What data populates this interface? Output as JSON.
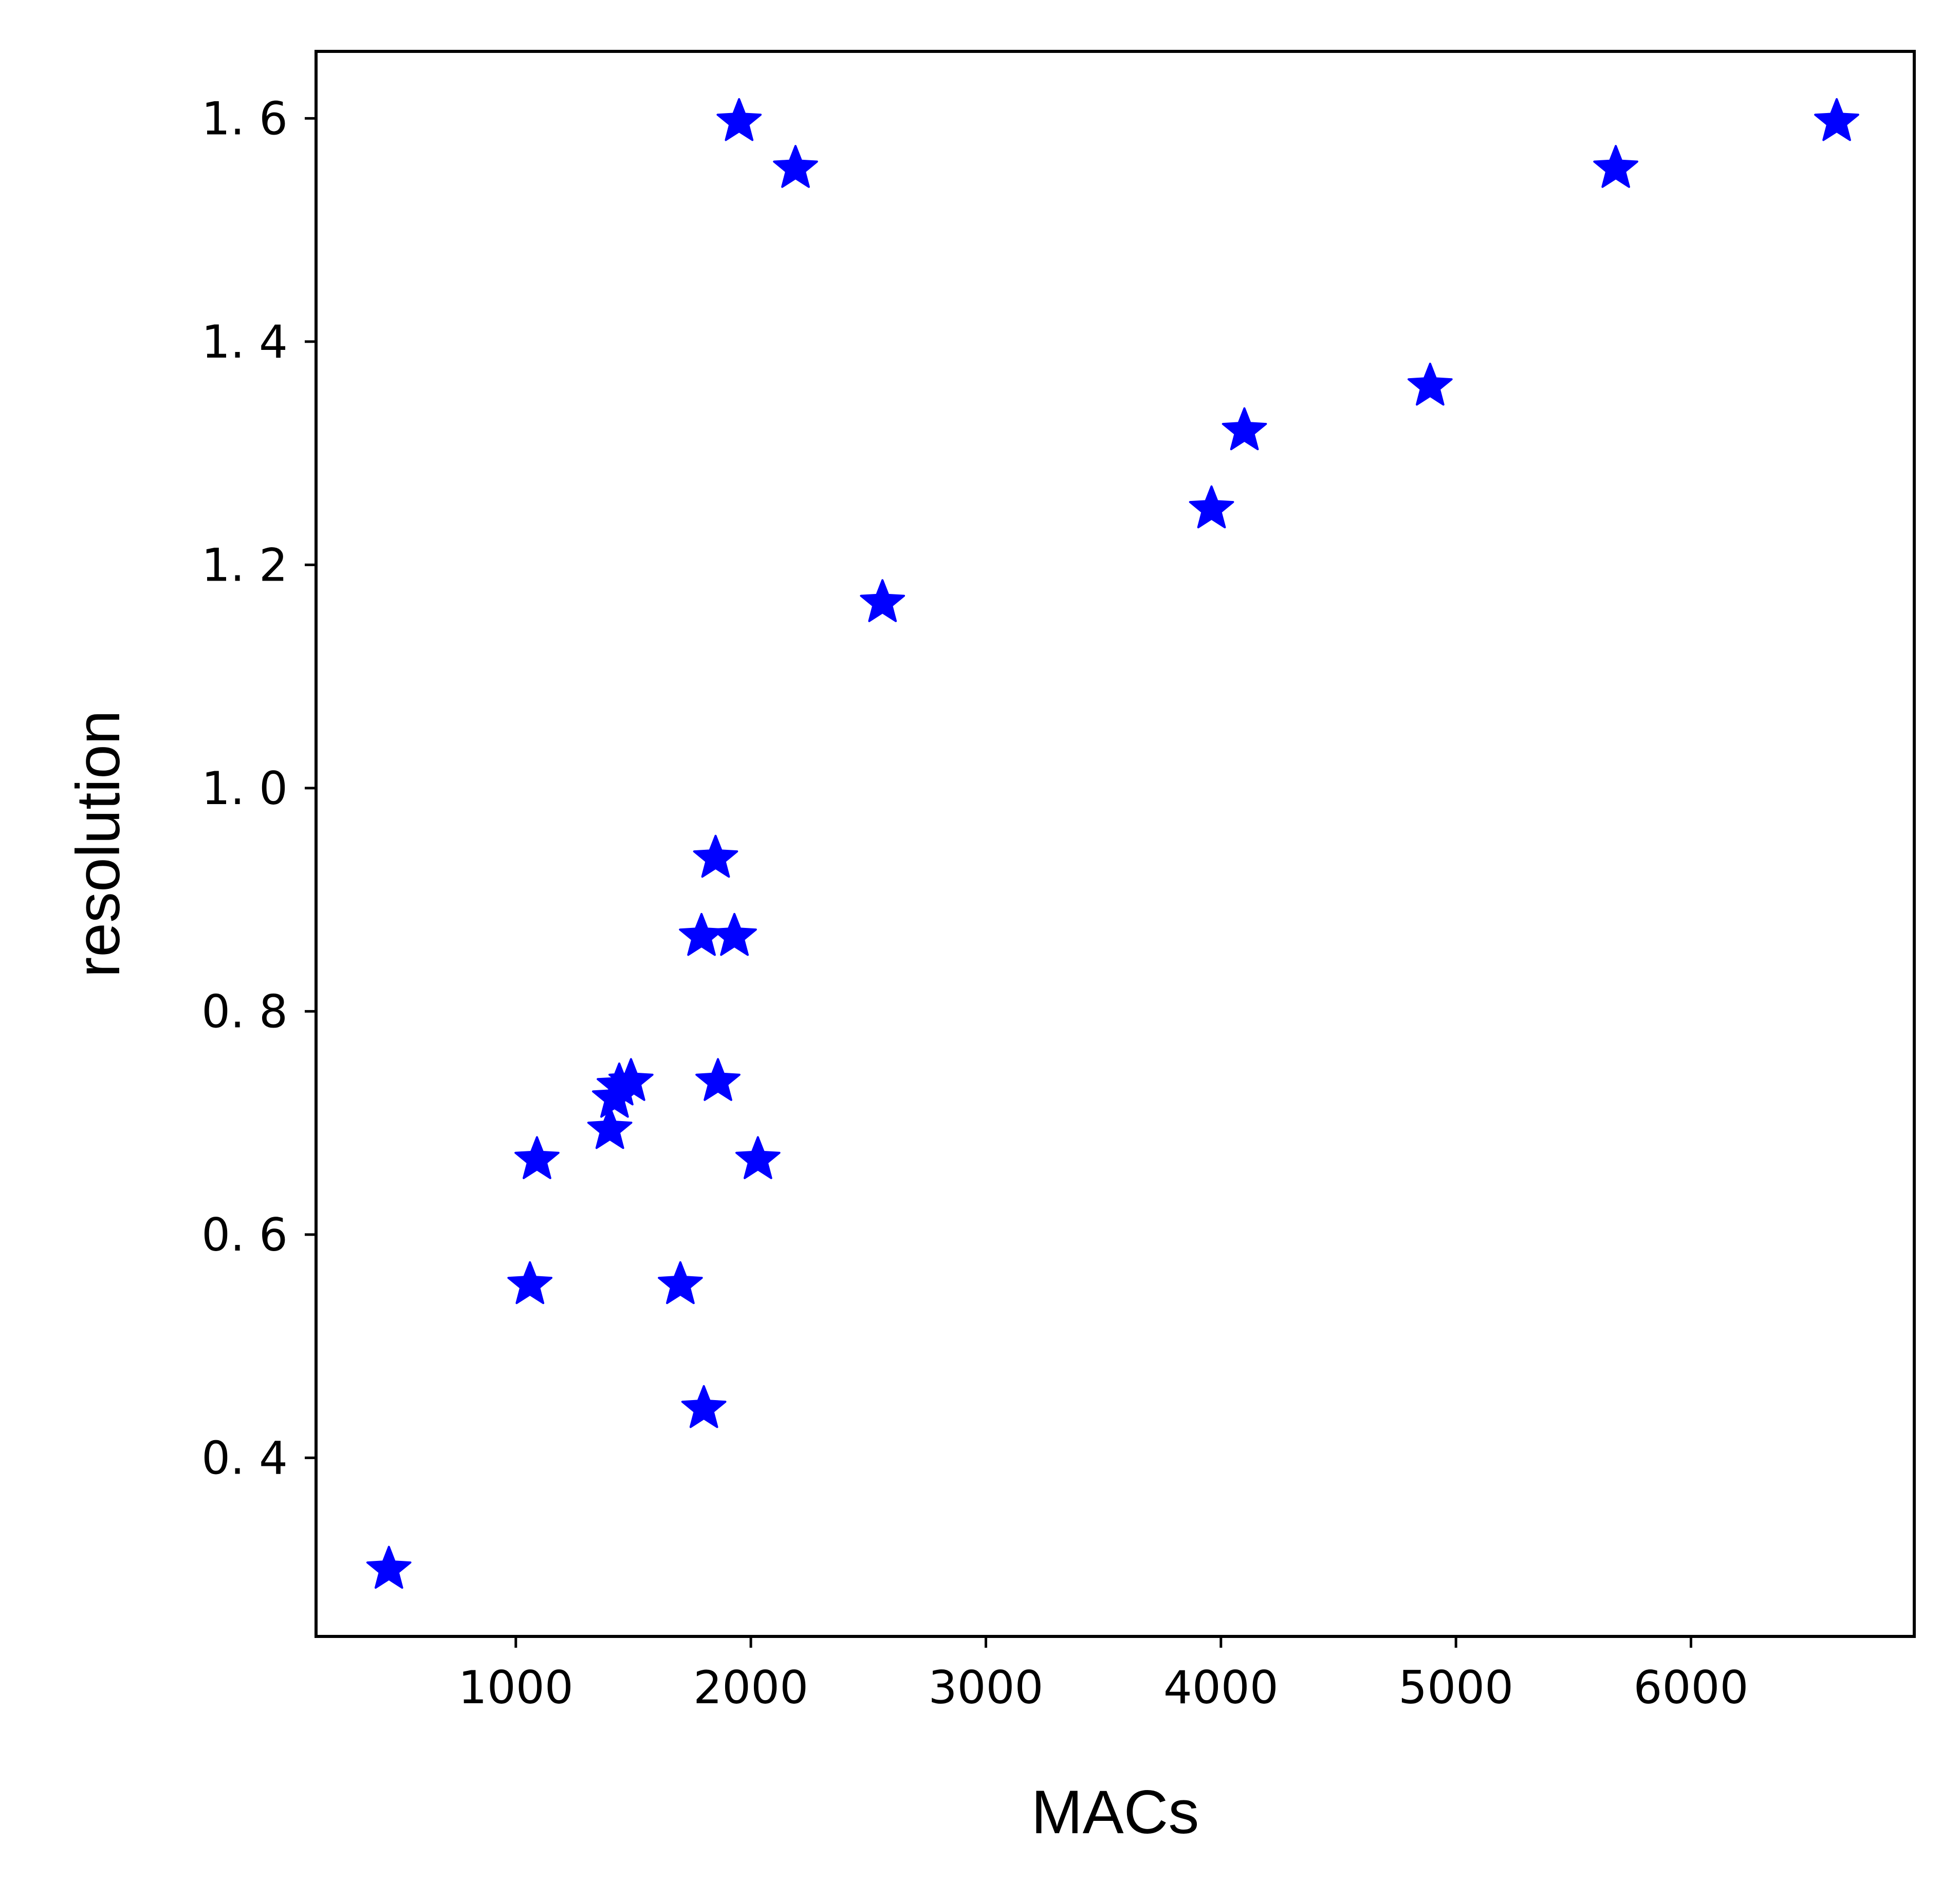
{
  "chart_data": {
    "type": "scatter",
    "title": "",
    "xlabel": "MACs",
    "ylabel": "resolution",
    "xlim": [
      150,
      6950
    ],
    "ylim": [
      0.24,
      1.66
    ],
    "xticks": [
      1000,
      2000,
      3000,
      4000,
      5000,
      6000
    ],
    "xtick_labels": [
      "1000",
      "2000",
      "3000",
      "4000",
      "5000",
      "6000"
    ],
    "yticks": [
      0.4,
      0.6,
      0.8,
      1.0,
      1.2,
      1.4,
      1.6
    ],
    "ytick_labels": [
      "0. 4",
      "0. 6",
      "0. 8",
      "1. 0",
      "1. 2",
      "1. 4",
      "1. 6"
    ],
    "grid": false,
    "marker": "star",
    "color": "#0000ff",
    "series": [
      {
        "points": [
          {
            "x": 460,
            "y": 0.3
          },
          {
            "x": 1060,
            "y": 0.555
          },
          {
            "x": 1090,
            "y": 0.667
          },
          {
            "x": 1400,
            "y": 0.694
          },
          {
            "x": 1420,
            "y": 0.722
          },
          {
            "x": 1440,
            "y": 0.733
          },
          {
            "x": 1490,
            "y": 0.737
          },
          {
            "x": 1700,
            "y": 0.555
          },
          {
            "x": 1800,
            "y": 0.444
          },
          {
            "x": 1790,
            "y": 0.867
          },
          {
            "x": 1930,
            "y": 0.867
          },
          {
            "x": 1850,
            "y": 0.937
          },
          {
            "x": 1860,
            "y": 0.737
          },
          {
            "x": 2030,
            "y": 0.667
          },
          {
            "x": 1950,
            "y": 1.597
          },
          {
            "x": 2190,
            "y": 1.555
          },
          {
            "x": 2560,
            "y": 1.166
          },
          {
            "x": 3960,
            "y": 1.25
          },
          {
            "x": 4100,
            "y": 1.32
          },
          {
            "x": 4890,
            "y": 1.36
          },
          {
            "x": 5680,
            "y": 1.555
          },
          {
            "x": 6620,
            "y": 1.597
          }
        ]
      }
    ]
  }
}
